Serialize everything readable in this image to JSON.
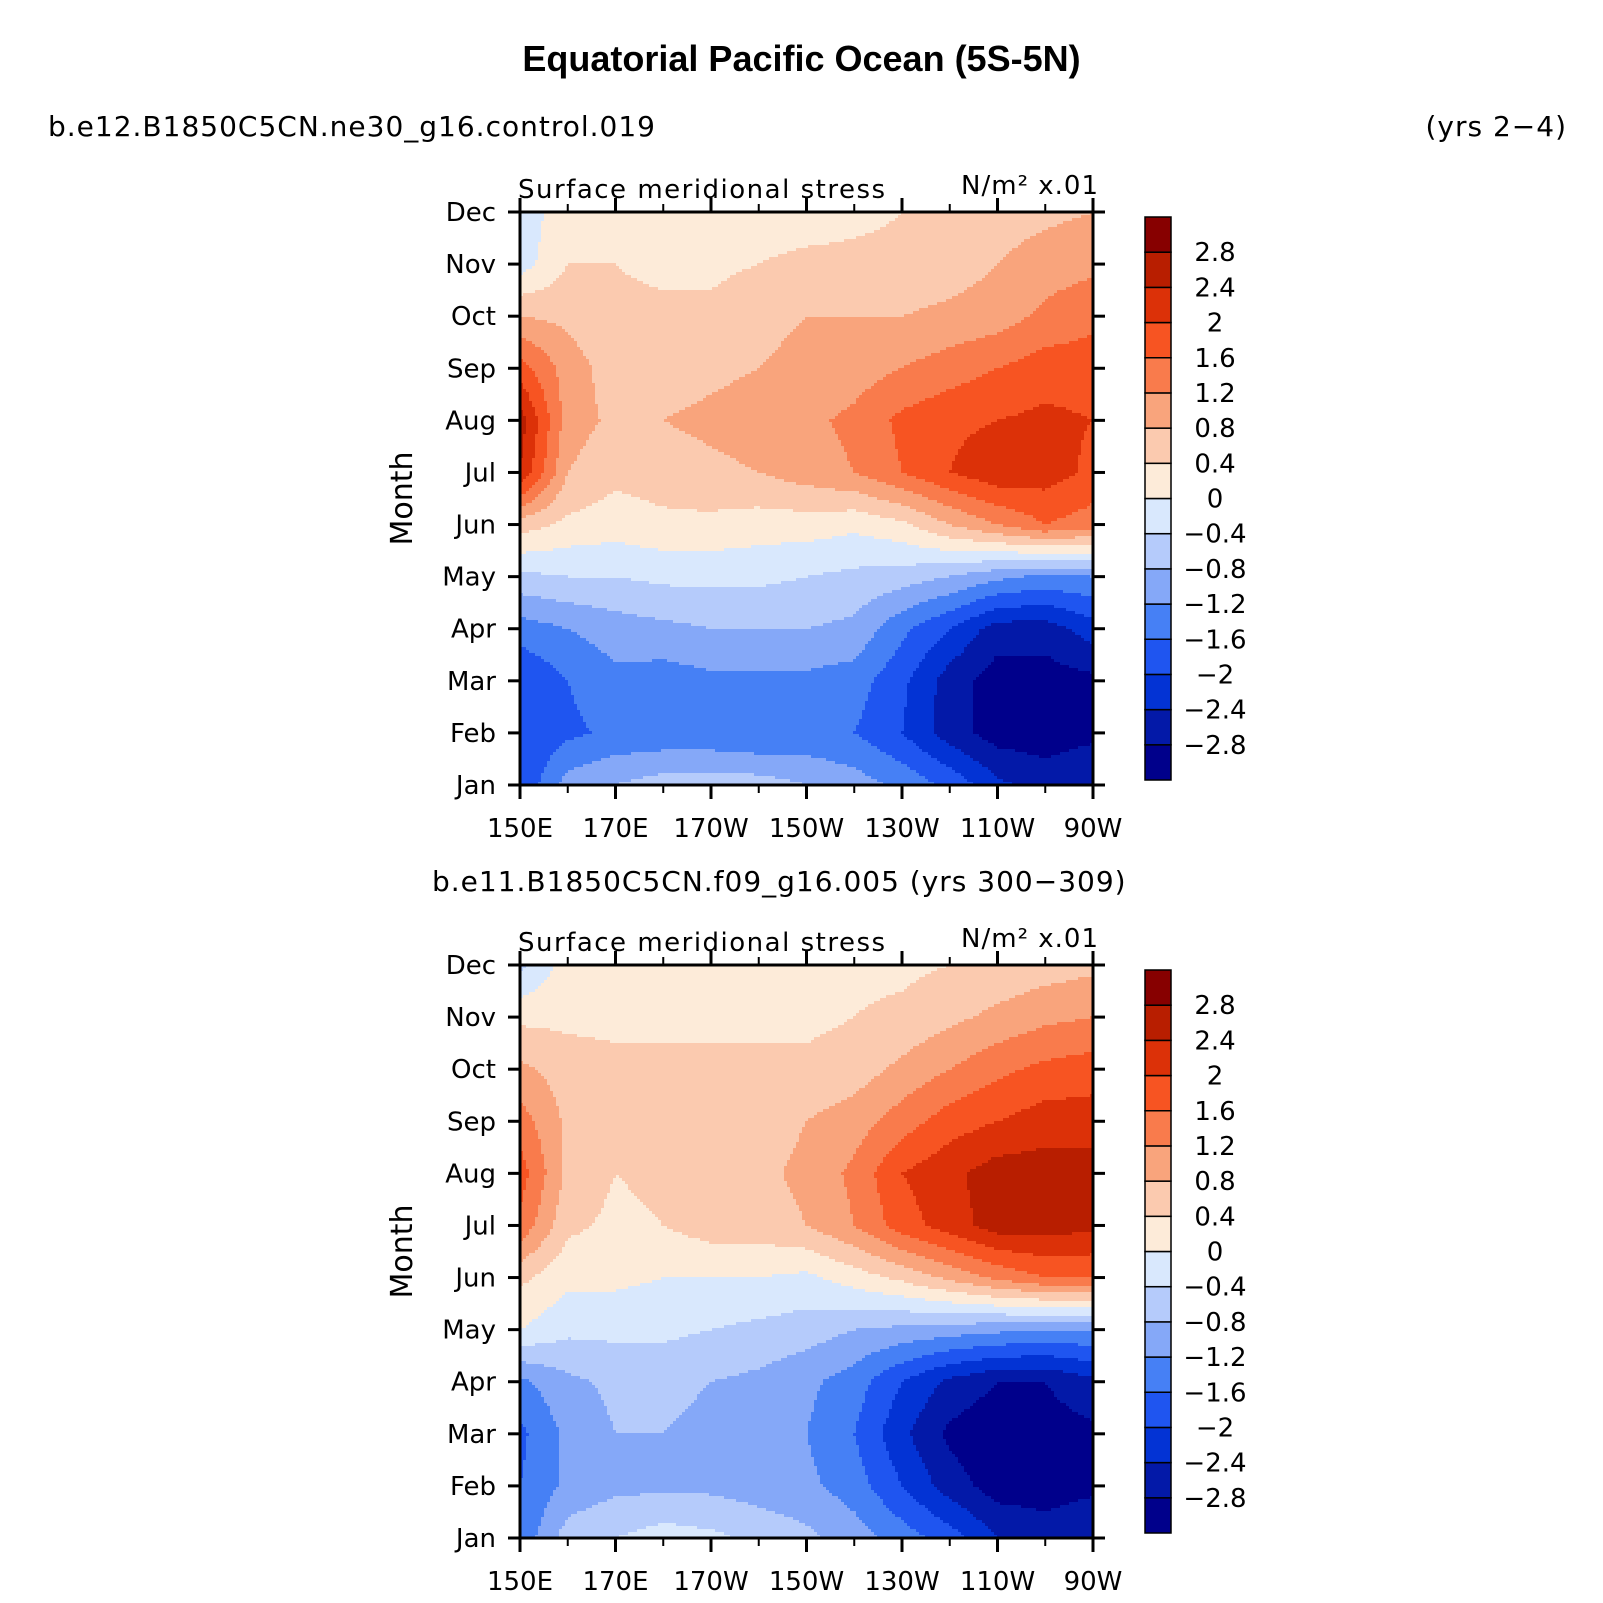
{
  "title": "Equatorial Pacific Ocean (5S-5N)",
  "case1_label": "b.e12.B1850C5CN.ne30_g16.control.019",
  "case1_years": "(yrs 2−4)",
  "case2_label": "b.e11.B1850C5CN.f09_g16.005 (yrs 300−309)",
  "colors": [
    "#00008b",
    "#0319a8",
    "#0333d4",
    "#1f55f0",
    "#4680f5",
    "#85a8f8",
    "#b5cbfb",
    "#d9e8fd",
    "#fdebd9",
    "#fbcaaf",
    "#f9a47c",
    "#f97b4c",
    "#f75422",
    "#dc3108",
    "#b81e00",
    "#870000"
  ],
  "chart_data": [
    {
      "type": "heatmap",
      "panel_title": "Surface meridional stress",
      "units": "N/m² x.01",
      "ylabel": "Month",
      "x_ticks": [
        "150E",
        "170E",
        "170W",
        "150W",
        "130W",
        "110W",
        "90W"
      ],
      "y_ticks": [
        "Jan",
        "Feb",
        "Mar",
        "Apr",
        "May",
        "Jun",
        "Jul",
        "Aug",
        "Sep",
        "Oct",
        "Nov",
        "Dec"
      ],
      "colorbar_labels": [
        "−2.8",
        "−2.4",
        "−2",
        "−1.6",
        "−1.2",
        "−0.8",
        "−0.4",
        "0",
        "0.4",
        "0.8",
        "1.2",
        "1.6",
        "2",
        "2.4",
        "2.8"
      ],
      "levels": [
        -2.8,
        -2.4,
        -2.0,
        -1.6,
        -1.2,
        -0.8,
        -0.4,
        0,
        0.4,
        0.8,
        1.2,
        1.6,
        2.0,
        2.4,
        2.8
      ],
      "lon": [
        150,
        160,
        170,
        180,
        190,
        200,
        210,
        220,
        230,
        240,
        250,
        260,
        270
      ],
      "values": [
        [
          -2.0,
          -1.0,
          -0.8,
          -0.6,
          -0.6,
          -0.6,
          -0.8,
          -1.0,
          -1.3,
          -1.7,
          -2.3,
          -2.6,
          -2.4
        ],
        [
          -2.0,
          -1.7,
          -1.5,
          -1.5,
          -1.5,
          -1.6,
          -1.5,
          -1.6,
          -2.0,
          -2.6,
          -3.0,
          -3.0,
          -2.9
        ],
        [
          -2.0,
          -1.6,
          -1.3,
          -1.4,
          -1.3,
          -1.3,
          -1.3,
          -1.4,
          -1.9,
          -2.6,
          -3.0,
          -3.0,
          -2.9
        ],
        [
          -1.4,
          -1.2,
          -1.0,
          -0.9,
          -0.8,
          -0.8,
          -0.8,
          -0.9,
          -1.5,
          -2.0,
          -2.6,
          -2.6,
          -2.2
        ],
        [
          -0.5,
          -0.4,
          -0.4,
          -0.3,
          -0.3,
          -0.3,
          -0.4,
          -0.5,
          -0.6,
          -0.8,
          -1.1,
          -1.3,
          -1.2
        ],
        [
          0.6,
          0.3,
          0.2,
          0.3,
          0.3,
          0.2,
          0.2,
          0.1,
          0.3,
          0.8,
          1.2,
          1.6,
          1.4
        ],
        [
          2.4,
          0.8,
          0.5,
          0.6,
          0.7,
          0.8,
          1.0,
          1.2,
          1.6,
          2.0,
          2.3,
          2.2,
          1.9
        ],
        [
          2.6,
          1.0,
          0.7,
          0.8,
          0.9,
          1.0,
          1.1,
          1.3,
          1.7,
          1.9,
          2.0,
          2.1,
          2.0
        ],
        [
          1.8,
          1.0,
          0.6,
          0.6,
          0.7,
          0.8,
          0.9,
          1.0,
          1.2,
          1.4,
          1.6,
          1.8,
          1.8
        ],
        [
          0.8,
          0.7,
          0.5,
          0.5,
          0.5,
          0.7,
          0.8,
          0.8,
          0.8,
          0.9,
          1.0,
          1.3,
          1.5
        ],
        [
          -0.2,
          0.4,
          0.4,
          0.3,
          0.3,
          0.4,
          0.5,
          0.5,
          0.5,
          0.6,
          0.8,
          1.0,
          1.1
        ],
        [
          -0.3,
          0.3,
          0.3,
          0.2,
          0.2,
          0.2,
          0.2,
          0.3,
          0.4,
          0.5,
          0.6,
          0.7,
          0.8
        ]
      ]
    },
    {
      "type": "heatmap",
      "panel_title": "Surface meridional stress",
      "units": "N/m² x.01",
      "ylabel": "Month",
      "x_ticks": [
        "150E",
        "170E",
        "170W",
        "150W",
        "130W",
        "110W",
        "90W"
      ],
      "y_ticks": [
        "Jan",
        "Feb",
        "Mar",
        "Apr",
        "May",
        "Jun",
        "Jul",
        "Aug",
        "Sep",
        "Oct",
        "Nov",
        "Dec"
      ],
      "colorbar_labels": [
        "−2.8",
        "−2.4",
        "−2",
        "−1.6",
        "−1.2",
        "−0.8",
        "−0.4",
        "0",
        "0.4",
        "0.8",
        "1.2",
        "1.6",
        "2",
        "2.4",
        "2.8"
      ],
      "levels": [
        -2.8,
        -2.4,
        -2.0,
        -1.6,
        -1.2,
        -0.8,
        -0.4,
        0,
        0.4,
        0.8,
        1.2,
        1.6,
        2.0,
        2.4,
        2.8
      ],
      "lon": [
        150,
        160,
        170,
        180,
        190,
        200,
        210,
        220,
        230,
        240,
        250,
        260,
        270
      ],
      "values": [
        [
          -1.5,
          -0.6,
          -0.4,
          -0.2,
          -0.3,
          -0.5,
          -0.7,
          -1.0,
          -1.4,
          -1.8,
          -2.4,
          -2.6,
          -2.4
        ],
        [
          -1.6,
          -1.1,
          -0.9,
          -0.9,
          -0.9,
          -1.0,
          -1.1,
          -1.4,
          -2.0,
          -2.6,
          -3.0,
          -3.0,
          -2.9
        ],
        [
          -1.7,
          -1.1,
          -0.8,
          -0.8,
          -0.9,
          -1.0,
          -1.2,
          -1.6,
          -2.3,
          -2.9,
          -3.1,
          -3.0,
          -2.9
        ],
        [
          -1.3,
          -0.9,
          -0.7,
          -0.7,
          -0.8,
          -0.9,
          -1.1,
          -1.4,
          -2.0,
          -2.5,
          -2.8,
          -2.8,
          -2.5
        ],
        [
          0.0,
          -0.3,
          -0.3,
          -0.3,
          -0.4,
          -0.5,
          -0.6,
          -0.8,
          -0.9,
          -1.0,
          -1.1,
          -1.2,
          -1.2
        ],
        [
          0.5,
          0.1,
          0.1,
          0.0,
          0.0,
          0.0,
          -0.1,
          0.2,
          0.5,
          0.9,
          1.3,
          1.6,
          1.6
        ],
        [
          1.5,
          0.5,
          0.3,
          0.4,
          0.6,
          0.6,
          0.8,
          1.2,
          1.8,
          2.2,
          2.6,
          2.6,
          2.5
        ],
        [
          1.8,
          0.7,
          0.4,
          0.5,
          0.7,
          0.7,
          0.9,
          1.3,
          2.0,
          2.3,
          2.6,
          2.6,
          2.6
        ],
        [
          1.4,
          0.7,
          0.5,
          0.5,
          0.6,
          0.6,
          0.8,
          1.0,
          1.4,
          1.8,
          2.0,
          2.2,
          2.2
        ],
        [
          0.9,
          0.6,
          0.5,
          0.5,
          0.5,
          0.5,
          0.5,
          0.6,
          0.9,
          1.2,
          1.5,
          1.7,
          1.8
        ],
        [
          0.3,
          0.3,
          0.3,
          0.3,
          0.3,
          0.3,
          0.3,
          0.4,
          0.5,
          0.7,
          0.9,
          1.1,
          1.2
        ],
        [
          -0.5,
          0.2,
          0.2,
          0.2,
          0.2,
          0.2,
          0.2,
          0.3,
          0.3,
          0.4,
          0.5,
          0.6,
          0.7
        ]
      ]
    }
  ]
}
